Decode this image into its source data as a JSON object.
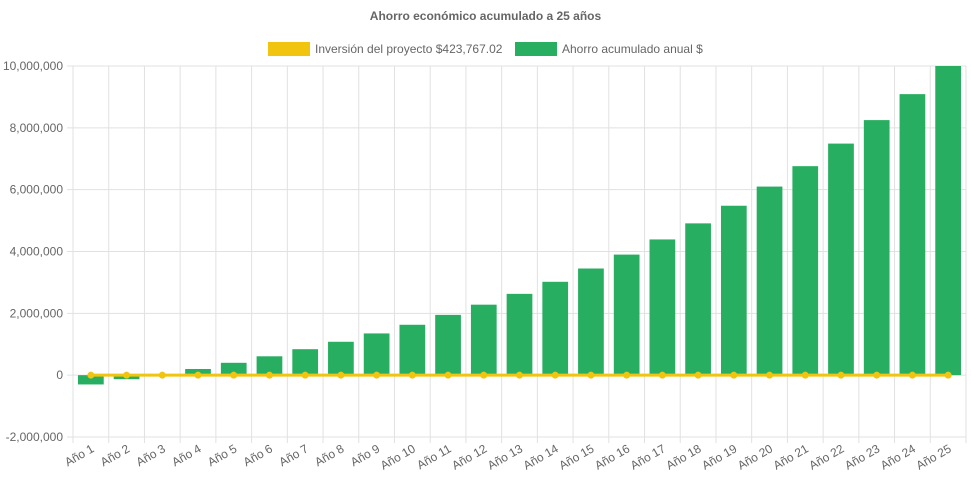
{
  "chart_data": {
    "type": "bar",
    "title": "Ahorro económico acumulado a 25 años",
    "xlabel": "",
    "ylabel": "",
    "ylim": [
      -2000000,
      10000000
    ],
    "yticks": [
      -2000000,
      0,
      2000000,
      4000000,
      6000000,
      8000000,
      10000000
    ],
    "ytick_labels": [
      "-2,000,000",
      "0",
      "2,000,000",
      "4,000,000",
      "6,000,000",
      "8,000,000",
      "10,000,000"
    ],
    "grid": true,
    "legend_position": "top",
    "categories": [
      "Año 1",
      "Año 2",
      "Año 3",
      "Año 4",
      "Año 5",
      "Año 6",
      "Año 7",
      "Año 8",
      "Año 9",
      "Año 10",
      "Año 11",
      "Año 12",
      "Año 13",
      "Año 14",
      "Año 15",
      "Año 16",
      "Año 17",
      "Año 18",
      "Año 19",
      "Año 20",
      "Año 21",
      "Año 22",
      "Año 23",
      "Año 24",
      "Año 25"
    ],
    "series": [
      {
        "name": "Inversión del proyecto $423,767.02",
        "type": "line",
        "color": "#f1c40f",
        "values": [
          0,
          0,
          0,
          0,
          0,
          0,
          0,
          0,
          0,
          0,
          0,
          0,
          0,
          0,
          0,
          0,
          0,
          0,
          0,
          0,
          0,
          0,
          0,
          0,
          0
        ]
      },
      {
        "name": "Ahorro acumulado anual $",
        "type": "bar",
        "color": "#27ae60",
        "values": [
          -300000,
          -130000,
          30000,
          200000,
          400000,
          610000,
          840000,
          1080000,
          1350000,
          1630000,
          1950000,
          2280000,
          2630000,
          3020000,
          3450000,
          3900000,
          4390000,
          4910000,
          5480000,
          6100000,
          6760000,
          7490000,
          8250000,
          9090000,
          10000000
        ]
      }
    ]
  }
}
